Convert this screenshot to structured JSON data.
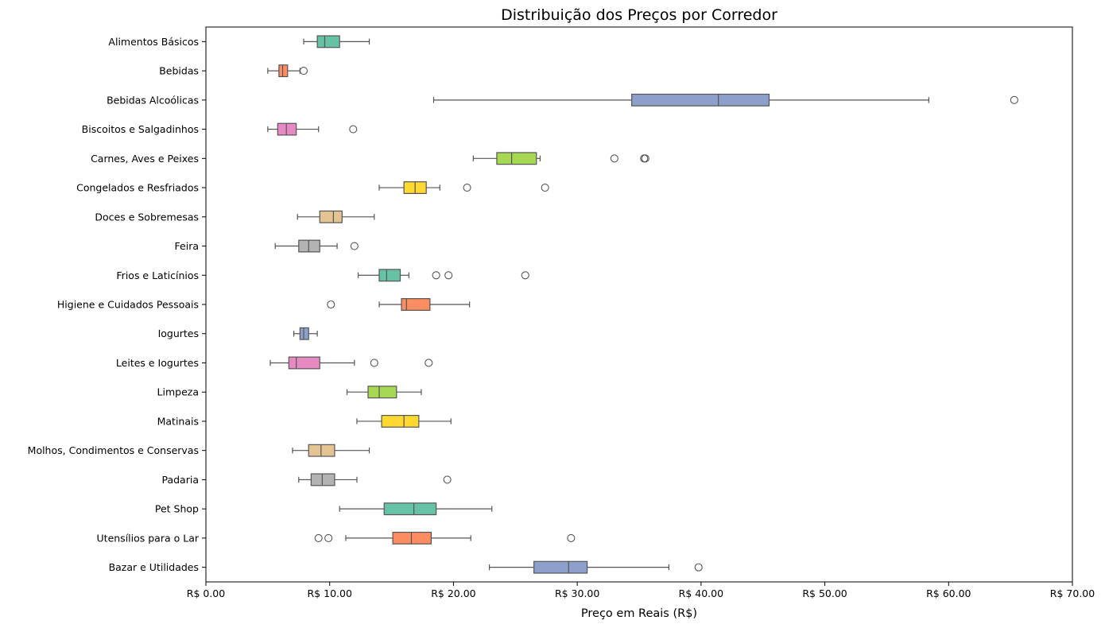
{
  "chart_data": {
    "type": "boxplot",
    "orientation": "horizontal",
    "title": "Distribuição dos Preços por Corredor",
    "xlabel": "Preço em Reais (R$)",
    "ylabel": "",
    "xlim": [
      0,
      70
    ],
    "xticks": [
      0,
      10,
      20,
      30,
      40,
      50,
      60,
      70
    ],
    "xtick_labels": [
      "R$ 0.00",
      "R$ 10.00",
      "R$ 20.00",
      "R$ 30.00",
      "R$ 40.00",
      "R$ 50.00",
      "R$ 60.00",
      "R$ 70.00"
    ],
    "grid": false,
    "palette": [
      "#66c2a5",
      "#fc8d62",
      "#8da0cb",
      "#e78ac3",
      "#a6d854",
      "#ffd92f",
      "#e5c494",
      "#b3b3b3"
    ],
    "categories": [
      {
        "name": "Alimentos Básicos",
        "whislo": 7.9,
        "q1": 9.0,
        "median": 9.6,
        "q3": 10.8,
        "whishi": 13.2,
        "fliers": []
      },
      {
        "name": "Bebidas",
        "whislo": 5.0,
        "q1": 5.9,
        "median": 6.2,
        "q3": 6.6,
        "whishi": 7.6,
        "fliers": [
          7.9
        ]
      },
      {
        "name": "Bebidas Alcoólicas",
        "whislo": 18.4,
        "q1": 34.4,
        "median": 41.4,
        "q3": 45.5,
        "whishi": 58.4,
        "fliers": [
          65.3
        ]
      },
      {
        "name": "Biscoitos e Salgadinhos",
        "whislo": 5.0,
        "q1": 5.8,
        "median": 6.5,
        "q3": 7.3,
        "whishi": 9.1,
        "fliers": [
          11.9
        ]
      },
      {
        "name": "Carnes, Aves e Peixes",
        "whislo": 21.6,
        "q1": 23.5,
        "median": 24.7,
        "q3": 26.7,
        "whishi": 27.0,
        "fliers": [
          33.0,
          35.4,
          35.5
        ]
      },
      {
        "name": "Congelados e Resfriados",
        "whislo": 14.0,
        "q1": 16.0,
        "median": 16.9,
        "q3": 17.8,
        "whishi": 18.9,
        "fliers": [
          21.1,
          27.4
        ]
      },
      {
        "name": "Doces e Sobremesas",
        "whislo": 7.4,
        "q1": 9.2,
        "median": 10.3,
        "q3": 11.0,
        "whishi": 13.6,
        "fliers": []
      },
      {
        "name": "Feira",
        "whislo": 5.6,
        "q1": 7.5,
        "median": 8.3,
        "q3": 9.2,
        "whishi": 10.6,
        "fliers": [
          12.0
        ]
      },
      {
        "name": "Frios e Laticínios",
        "whislo": 12.3,
        "q1": 14.0,
        "median": 14.6,
        "q3": 15.7,
        "whishi": 16.4,
        "fliers": [
          18.6,
          19.6,
          25.8
        ]
      },
      {
        "name": "Higiene e Cuidados Pessoais",
        "whislo": 14.0,
        "q1": 15.8,
        "median": 16.2,
        "q3": 18.1,
        "whishi": 21.3,
        "fliers": [
          10.1
        ]
      },
      {
        "name": "Iogurtes",
        "whislo": 7.1,
        "q1": 7.6,
        "median": 7.9,
        "q3": 8.3,
        "whishi": 9.0,
        "fliers": []
      },
      {
        "name": "Leites e Iogurtes",
        "whislo": 5.2,
        "q1": 6.7,
        "median": 7.3,
        "q3": 9.2,
        "whishi": 12.0,
        "fliers": [
          13.6,
          18.0
        ]
      },
      {
        "name": "Limpeza",
        "whislo": 11.4,
        "q1": 13.1,
        "median": 14.0,
        "q3": 15.4,
        "whishi": 17.4,
        "fliers": []
      },
      {
        "name": "Matinais",
        "whislo": 12.2,
        "q1": 14.2,
        "median": 16.0,
        "q3": 17.2,
        "whishi": 19.8,
        "fliers": []
      },
      {
        "name": "Molhos, Condimentos e Conservas",
        "whislo": 7.0,
        "q1": 8.3,
        "median": 9.3,
        "q3": 10.4,
        "whishi": 13.2,
        "fliers": []
      },
      {
        "name": "Padaria",
        "whislo": 7.5,
        "q1": 8.5,
        "median": 9.4,
        "q3": 10.4,
        "whishi": 12.2,
        "fliers": [
          19.5
        ]
      },
      {
        "name": "Pet Shop",
        "whislo": 10.8,
        "q1": 14.4,
        "median": 16.8,
        "q3": 18.6,
        "whishi": 23.1,
        "fliers": []
      },
      {
        "name": "Utensílios para o Lar",
        "whislo": 11.3,
        "q1": 15.1,
        "median": 16.6,
        "q3": 18.2,
        "whishi": 21.4,
        "fliers": [
          9.1,
          9.9,
          29.5
        ]
      },
      {
        "name": "Bazar e Utilidades",
        "whislo": 22.9,
        "q1": 26.5,
        "median": 29.3,
        "q3": 30.8,
        "whishi": 37.4,
        "fliers": [
          39.8
        ]
      }
    ]
  }
}
